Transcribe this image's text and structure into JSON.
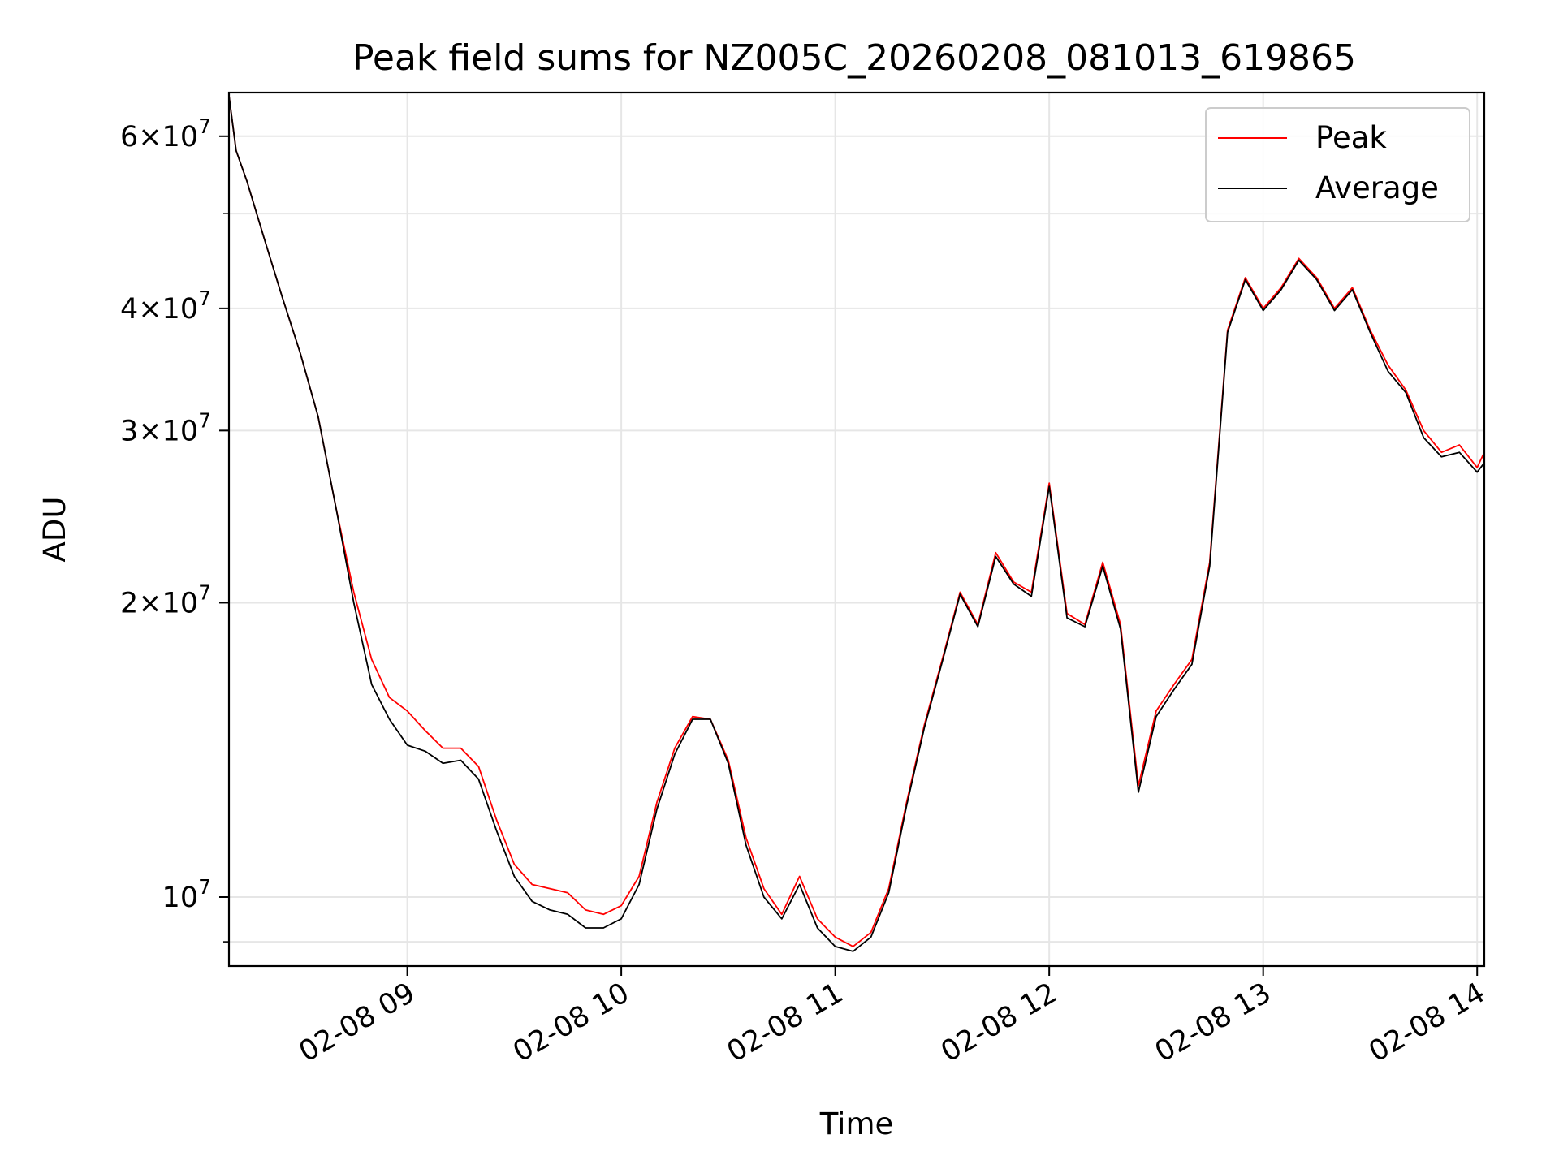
{
  "chart_data": {
    "type": "line",
    "title": "Peak field sums for NZ005C_20260208_081013_619865",
    "xlabel": "Time",
    "ylabel": "ADU",
    "yscale": "log",
    "grid": true,
    "legend_position": "upper right",
    "xlim": [
      "02-08 08:10",
      "02-08 14:02"
    ],
    "ylim": [
      8500000,
      66500000
    ],
    "x_ticks": [
      {
        "t": "02-08 09:00",
        "label": "02-08 09"
      },
      {
        "t": "02-08 10:00",
        "label": "02-08 10"
      },
      {
        "t": "02-08 11:00",
        "label": "02-08 11"
      },
      {
        "t": "02-08 12:00",
        "label": "02-08 12"
      },
      {
        "t": "02-08 13:00",
        "label": "02-08 13"
      },
      {
        "t": "02-08 14:00",
        "label": "02-08 14"
      }
    ],
    "y_ticks_major": [
      {
        "v": 10000000,
        "label": "10^7"
      },
      {
        "v": 20000000,
        "label": "2×10^7"
      },
      {
        "v": 30000000,
        "label": "3×10^7"
      },
      {
        "v": 40000000,
        "label": "4×10^7"
      },
      {
        "v": 60000000,
        "label": "6×10^7"
      }
    ],
    "y_ticks_minor": [
      9000000,
      50000000
    ],
    "x": [
      "08:10",
      "08:12",
      "08:15",
      "08:20",
      "08:25",
      "08:30",
      "08:35",
      "08:40",
      "08:45",
      "08:50",
      "08:55",
      "09:00",
      "09:05",
      "09:10",
      "09:15",
      "09:20",
      "09:25",
      "09:30",
      "09:35",
      "09:40",
      "09:45",
      "09:50",
      "09:55",
      "10:00",
      "10:05",
      "10:10",
      "10:15",
      "10:20",
      "10:25",
      "10:30",
      "10:35",
      "10:40",
      "10:45",
      "10:50",
      "10:55",
      "11:00",
      "11:05",
      "11:10",
      "11:15",
      "11:20",
      "11:25",
      "11:30",
      "11:35",
      "11:40",
      "11:45",
      "11:50",
      "11:55",
      "12:00",
      "12:05",
      "12:10",
      "12:15",
      "12:20",
      "12:25",
      "12:30",
      "12:35",
      "12:40",
      "12:45",
      "12:50",
      "12:55",
      "13:00",
      "13:05",
      "13:10",
      "13:15",
      "13:20",
      "13:25",
      "13:30",
      "13:35",
      "13:40",
      "13:45",
      "13:50",
      "13:55",
      "14:00",
      "14:02"
    ],
    "series": [
      {
        "name": "Peak",
        "color": "#ff0000",
        "values": [
          66000000,
          58000000,
          54000000,
          47000000,
          41000000,
          36000000,
          31000000,
          25000000,
          20500000,
          17500000,
          16000000,
          15500000,
          14800000,
          14200000,
          14200000,
          13600000,
          12000000,
          10800000,
          10300000,
          10200000,
          10100000,
          9700000,
          9600000,
          9800000,
          10500000,
          12500000,
          14200000,
          15300000,
          15200000,
          13800000,
          11500000,
          10200000,
          9600000,
          10500000,
          9500000,
          9100000,
          8900000,
          9200000,
          10200000,
          12500000,
          15000000,
          17500000,
          20500000,
          19000000,
          22500000,
          21000000,
          20500000,
          26500000,
          19500000,
          19000000,
          22000000,
          19000000,
          13000000,
          15500000,
          16500000,
          17500000,
          22000000,
          38000000,
          43000000,
          40000000,
          42000000,
          45000000,
          43000000,
          40000000,
          42000000,
          38000000,
          35000000,
          33000000,
          30000000,
          28500000,
          29000000,
          27500000,
          28500000
        ]
      },
      {
        "name": "Average",
        "color": "#000000",
        "values": [
          66000000,
          58000000,
          54000000,
          47000000,
          41000000,
          36000000,
          31000000,
          25000000,
          20000000,
          16500000,
          15200000,
          14300000,
          14100000,
          13700000,
          13800000,
          13200000,
          11700000,
          10500000,
          9900000,
          9700000,
          9600000,
          9300000,
          9300000,
          9500000,
          10300000,
          12300000,
          14000000,
          15200000,
          15200000,
          13700000,
          11300000,
          10000000,
          9500000,
          10300000,
          9300000,
          8900000,
          8800000,
          9100000,
          10100000,
          12400000,
          14900000,
          17400000,
          20400000,
          18900000,
          22300000,
          20900000,
          20300000,
          26300000,
          19300000,
          18900000,
          21800000,
          18800000,
          12800000,
          15300000,
          16300000,
          17300000,
          21800000,
          37800000,
          42800000,
          39800000,
          41800000,
          44800000,
          42800000,
          39800000,
          41800000,
          37800000,
          34500000,
          32800000,
          29500000,
          28200000,
          28500000,
          27200000,
          27800000
        ]
      }
    ]
  }
}
